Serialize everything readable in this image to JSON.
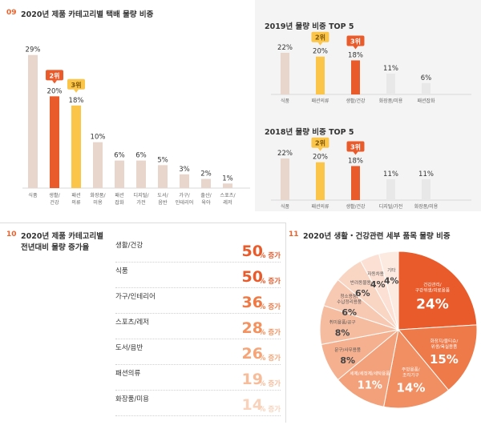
{
  "section09": {
    "number": "09",
    "title": "2020년 제품 카테고리별 택배 물량 비중",
    "chart_data": {
      "type": "bar",
      "categories": [
        "식품",
        "생활/건강",
        "패션의류",
        "화장품/미용",
        "패션잡화",
        "디지털/가전",
        "도서/음반",
        "가구/인테리어",
        "출산/육아",
        "스포츠/레저"
      ],
      "tick_labels": [
        [
          "식품"
        ],
        [
          "생활/",
          "건강"
        ],
        [
          "패션",
          "의류"
        ],
        [
          "화장품/",
          "미용"
        ],
        [
          "패션",
          "잡화"
        ],
        [
          "디지털/",
          "가전"
        ],
        [
          "도서/",
          "음반"
        ],
        [
          "가구/",
          "인테리어"
        ],
        [
          "출산/",
          "육아"
        ],
        [
          "스포츠/",
          "레저"
        ]
      ],
      "values": [
        29,
        20,
        18,
        10,
        6,
        6,
        5,
        3,
        2,
        1
      ],
      "data_labels": [
        "29%",
        "20%",
        "18%",
        "10%",
        "6%",
        "6%",
        "5%",
        "3%",
        "2%",
        "1%"
      ],
      "badges": [
        {
          "index": 1,
          "text": "2위"
        },
        {
          "index": 2,
          "text": "3위"
        }
      ],
      "colors": [
        "#e8d6cc",
        "#ea5b2b",
        "#fbc54a",
        "#e8d6cc",
        "#e8d6cc",
        "#e8d6cc",
        "#e8d6cc",
        "#e8d6cc",
        "#e8d6cc",
        "#e8d6cc"
      ],
      "ylim": [
        0,
        30
      ]
    }
  },
  "top2019": {
    "title": "2019년 물량 비중 TOP 5",
    "chart_data": {
      "type": "bar",
      "categories": [
        "식품",
        "패션의류",
        "생활/건강",
        "화장품/미용",
        "패션잡화"
      ],
      "values": [
        22,
        20,
        18,
        11,
        6
      ],
      "data_labels": [
        "22%",
        "20%",
        "18%",
        "11%",
        "6%"
      ],
      "badges": [
        {
          "index": 1,
          "text": "2위"
        },
        {
          "index": 2,
          "text": "3위"
        }
      ],
      "colors": [
        "#e8d6cc",
        "#fbc54a",
        "#ea5b2b",
        "#e8e8e8",
        "#e8e8e8"
      ],
      "ylim": [
        0,
        22
      ]
    }
  },
  "top2018": {
    "title": "2018년 물량 비중 TOP 5",
    "chart_data": {
      "type": "bar",
      "categories": [
        "식품",
        "패션의류",
        "생활/건강",
        "디지털/가전",
        "화장품/미용"
      ],
      "values": [
        22,
        20,
        18,
        11,
        11
      ],
      "data_labels": [
        "22%",
        "20%",
        "18%",
        "11%",
        "11%"
      ],
      "badges": [
        {
          "index": 1,
          "text": "2위"
        },
        {
          "index": 2,
          "text": "3위"
        }
      ],
      "colors": [
        "#e8d6cc",
        "#fbc54a",
        "#ea5b2b",
        "#e8e8e8",
        "#e8e8e8"
      ],
      "ylim": [
        0,
        22
      ]
    }
  },
  "section10": {
    "number": "10",
    "title_line1": "2020년 제품 카테고리별",
    "title_line2": "전년대비 물량 증가율",
    "chart_data": {
      "type": "table",
      "categories": [
        "생활/건강",
        "식품",
        "가구/인테리어",
        "스포츠/레저",
        "도서/음반",
        "패션의류",
        "화장품/미용"
      ],
      "values": [
        50,
        50,
        36,
        28,
        26,
        19,
        14
      ],
      "value_labels": [
        "50",
        "50",
        "36",
        "28",
        "26",
        "19",
        "14"
      ],
      "unit": "% 증가",
      "colors": [
        "#ea5b2b",
        "#ea5b2b",
        "#f07a45",
        "#f3925e",
        "#f5a577",
        "#f7bd9b",
        "#f9d2bb"
      ]
    }
  },
  "section11": {
    "number": "11",
    "title": "2020년 생활・건강관련 세부 품목 물량 비중",
    "chart_data": {
      "type": "pie",
      "labels": [
        [
          "건강관리/",
          "구강위생/의료용품"
        ],
        [
          "화장지/물티슈/",
          "위생/욕실용품"
        ],
        [
          "주방용품/",
          "조리기구"
        ],
        [
          "세제/세정제/세탁용품"
        ],
        [
          "문구/사무용품"
        ],
        [
          "취미용품/공구"
        ],
        [
          "청소용품/",
          "수납정리용품"
        ],
        [
          "반려동물용품"
        ],
        [
          "자동차용품"
        ],
        [
          "기타"
        ]
      ],
      "values": [
        24,
        15,
        14,
        11,
        8,
        8,
        6,
        6,
        4,
        4
      ],
      "value_labels": [
        "24%",
        "15%",
        "14%",
        "11%",
        "8%",
        "8%",
        "6%",
        "6%",
        "4%",
        "4%"
      ],
      "colors": [
        "#ea5b2b",
        "#ee7a4a",
        "#f18f62",
        "#f3a17a",
        "#f4b08f",
        "#f6bca0",
        "#f8c9b2",
        "#f9d5c3",
        "#fbe0d3",
        "#fce9e0"
      ]
    }
  }
}
